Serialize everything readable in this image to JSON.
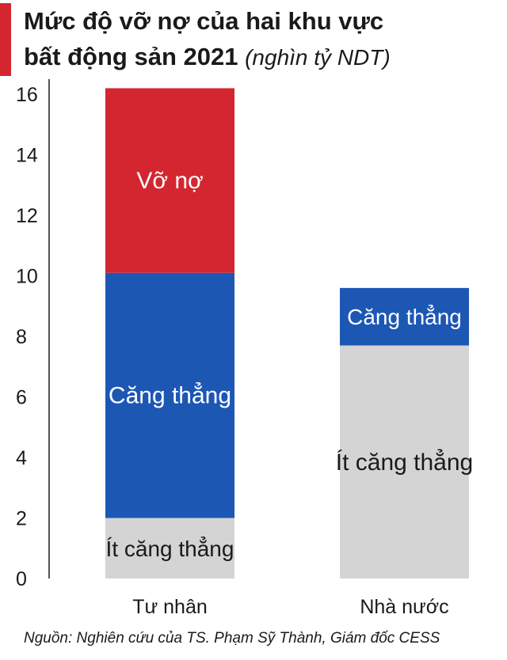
{
  "title_line1": "Mức độ vỡ nợ của hai khu vực",
  "title_line2": "bất động sản 2021",
  "title_unit": "(nghìn tỷ NDT)",
  "source": "Nguồn: Nghiên cứu của TS. Phạm Sỹ Thành, Giám đốc CESS",
  "colors": {
    "accent": "#d32630",
    "segments": [
      "#d4d4d4",
      "#1d57b4",
      "#d32630"
    ]
  },
  "chart_data": {
    "type": "bar",
    "stacked": true,
    "categories": [
      "Tư nhân",
      "Nhà nước"
    ],
    "ylim": [
      0,
      16.5
    ],
    "yticks": [
      0,
      2,
      4,
      6,
      8,
      10,
      12,
      14,
      16
    ],
    "grid": false,
    "legend": "none",
    "series": [
      {
        "name": "Ít căng thẳng",
        "values": [
          2.0,
          7.7
        ],
        "color": "#d4d4d4",
        "text_color": "#1a1a1a"
      },
      {
        "name": "Căng thẳng",
        "values": [
          8.1,
          1.9
        ],
        "color": "#1d57b4",
        "text_color": "#ffffff"
      },
      {
        "name": "Vỡ nợ",
        "values": [
          6.1,
          0
        ],
        "color": "#d32630",
        "text_color": "#ffffff"
      }
    ]
  }
}
